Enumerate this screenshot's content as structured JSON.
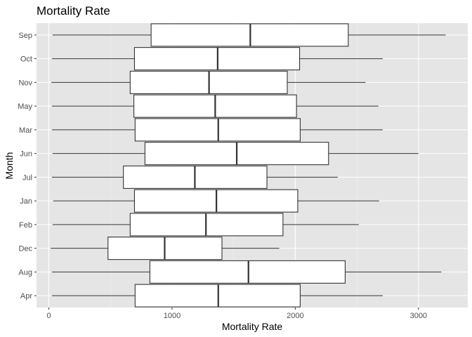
{
  "chart_data": {
    "type": "boxplot",
    "orientation": "horizontal",
    "title": "Mortality Rate",
    "xlabel": "Mortality Rate",
    "ylabel": "Month",
    "xlim": [
      -100,
      3400
    ],
    "x_ticks": [
      0,
      1000,
      2000,
      3000
    ],
    "grid": true,
    "categories": [
      "Apr",
      "Aug",
      "Dec",
      "Feb",
      "Jan",
      "Jul",
      "Jun",
      "Mar",
      "May",
      "Nov",
      "Oct",
      "Sep"
    ],
    "boxes": [
      {
        "category": "Apr",
        "whisker_low": 25,
        "q1": 700,
        "median": 1375,
        "q3": 2040,
        "whisker_high": 2710
      },
      {
        "category": "Aug",
        "whisker_low": 25,
        "q1": 820,
        "median": 1620,
        "q3": 2405,
        "whisker_high": 3185
      },
      {
        "category": "Dec",
        "whisker_low": 15,
        "q1": 480,
        "median": 940,
        "q3": 1405,
        "whisker_high": 1870
      },
      {
        "category": "Feb",
        "whisker_low": 30,
        "q1": 660,
        "median": 1275,
        "q3": 1900,
        "whisker_high": 2515
      },
      {
        "category": "Jan",
        "whisker_low": 35,
        "q1": 695,
        "median": 1360,
        "q3": 2020,
        "whisker_high": 2680
      },
      {
        "category": "Jul",
        "whisker_low": 25,
        "q1": 605,
        "median": 1185,
        "q3": 1770,
        "whisker_high": 2345
      },
      {
        "category": "Jun",
        "whisker_low": 30,
        "q1": 780,
        "median": 1525,
        "q3": 2270,
        "whisker_high": 3000
      },
      {
        "category": "Mar",
        "whisker_low": 25,
        "q1": 700,
        "median": 1375,
        "q3": 2040,
        "whisker_high": 2710
      },
      {
        "category": "May",
        "whisker_low": 25,
        "q1": 690,
        "median": 1350,
        "q3": 2010,
        "whisker_high": 2675
      },
      {
        "category": "Nov",
        "whisker_low": 20,
        "q1": 660,
        "median": 1300,
        "q3": 1935,
        "whisker_high": 2570
      },
      {
        "category": "Oct",
        "whisker_low": 25,
        "q1": 695,
        "median": 1370,
        "q3": 2035,
        "whisker_high": 2710
      },
      {
        "category": "Sep",
        "whisker_low": 30,
        "q1": 830,
        "median": 1635,
        "q3": 2430,
        "whisker_high": 3220
      }
    ]
  },
  "colors": {
    "panel_background": "#e5e5e5",
    "grid_major": "#ffffff",
    "grid_minor": "#f0f0f0",
    "box_fill": "#ffffff",
    "box_stroke": "#333333",
    "tick_mark": "#333333",
    "tick_text": "#4d4d4d"
  }
}
